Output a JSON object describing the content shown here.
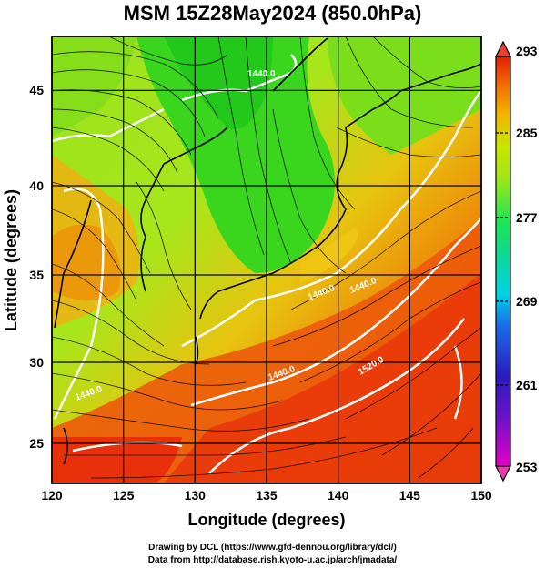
{
  "title": "MSM 15Z28May2024 (850.0hPa)",
  "axes": {
    "xlabel": "Longitude (degrees)",
    "ylabel": "Latitude  (degrees)",
    "x_ticks": [
      "120",
      "125",
      "130",
      "135",
      "140",
      "145",
      "150"
    ],
    "y_ticks": [
      "25",
      "30",
      "35",
      "40",
      "45"
    ]
  },
  "colorbar": {
    "min": 253,
    "max": 293,
    "tick_labels": [
      "293",
      "285",
      "277",
      "269",
      "261",
      "253"
    ],
    "colors": [
      "#e600c8",
      "#2a1cc0",
      "#1a6ae6",
      "#00d2e6",
      "#1ee650",
      "#c8e600",
      "#f0b400",
      "#f06e00",
      "#e61e00"
    ]
  },
  "contour_labels": [
    "1440.0",
    "1440.0",
    "1440.0",
    "1440.0",
    "1440.0",
    "1520.0"
  ],
  "credits": {
    "line1": "Drawing by DCL (https://www.gfd-dennou.org/library/dcl/)",
    "line2": "Data from http://database.rish.kyoto-u.ac.jp/arch/jmadata/"
  },
  "chart_data": {
    "type": "heatmap",
    "title": "MSM 15Z28May2024 (850.0hPa)",
    "xlabel": "Longitude (degrees)",
    "ylabel": "Latitude  (degrees)",
    "xlim": [
      120,
      150
    ],
    "ylim": [
      22.4,
      47.6
    ],
    "x_ticks": [
      120,
      125,
      130,
      135,
      140,
      145,
      150
    ],
    "y_ticks": [
      25,
      30,
      35,
      40,
      45
    ],
    "grid": true,
    "colorbar_range": [
      253,
      293
    ],
    "colorbar_ticks": [
      293,
      285,
      277,
      269,
      261,
      253
    ],
    "contour_labels": [
      "1440.0",
      "1520.0"
    ]
  }
}
